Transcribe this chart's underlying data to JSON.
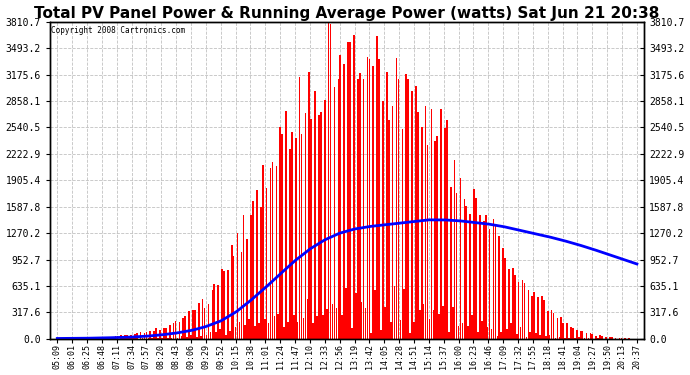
{
  "title": "Total PV Panel Power & Running Average Power (watts) Sat Jun 21 20:38",
  "copyright": "Copyright 2008 Cartronics.com",
  "yticks": [
    0.0,
    317.6,
    635.1,
    952.7,
    1270.2,
    1587.8,
    1905.4,
    2222.9,
    2540.5,
    2858.1,
    3175.6,
    3493.2,
    3810.7
  ],
  "ymax": 3810.7,
  "ymin": 0.0,
  "background_color": "#ffffff",
  "plot_bg_color": "#ffffff",
  "bar_color": "#ff0000",
  "line_color": "#0000ff",
  "grid_color": "#bbbbbb",
  "title_fontsize": 11,
  "x_labels": [
    "05:09",
    "06:01",
    "06:25",
    "06:48",
    "07:11",
    "07:34",
    "07:57",
    "08:20",
    "08:43",
    "09:06",
    "09:29",
    "09:52",
    "10:15",
    "10:38",
    "11:01",
    "11:24",
    "11:47",
    "12:10",
    "12:33",
    "12:56",
    "13:19",
    "13:42",
    "14:05",
    "14:28",
    "14:51",
    "15:14",
    "15:37",
    "16:00",
    "16:23",
    "16:46",
    "17:09",
    "17:32",
    "17:55",
    "18:18",
    "18:41",
    "19:04",
    "19:27",
    "19:50",
    "20:13",
    "20:37"
  ],
  "pv_envelope": [
    5,
    8,
    12,
    20,
    35,
    55,
    90,
    150,
    220,
    350,
    500,
    780,
    1200,
    1700,
    2200,
    2700,
    2900,
    3400,
    3700,
    3810,
    3750,
    3600,
    3450,
    3200,
    3000,
    2800,
    2600,
    2200,
    1800,
    1600,
    1200,
    900,
    650,
    430,
    250,
    130,
    60,
    25,
    8,
    3
  ],
  "running_avg": [
    5,
    6,
    8,
    11,
    16,
    22,
    32,
    48,
    70,
    100,
    148,
    215,
    320,
    460,
    615,
    780,
    940,
    1080,
    1190,
    1270,
    1320,
    1350,
    1370,
    1390,
    1410,
    1430,
    1430,
    1420,
    1400,
    1380,
    1350,
    1310,
    1270,
    1230,
    1185,
    1135,
    1080,
    1020,
    960,
    900
  ],
  "num_bars": 300,
  "spiky_seed": 12
}
